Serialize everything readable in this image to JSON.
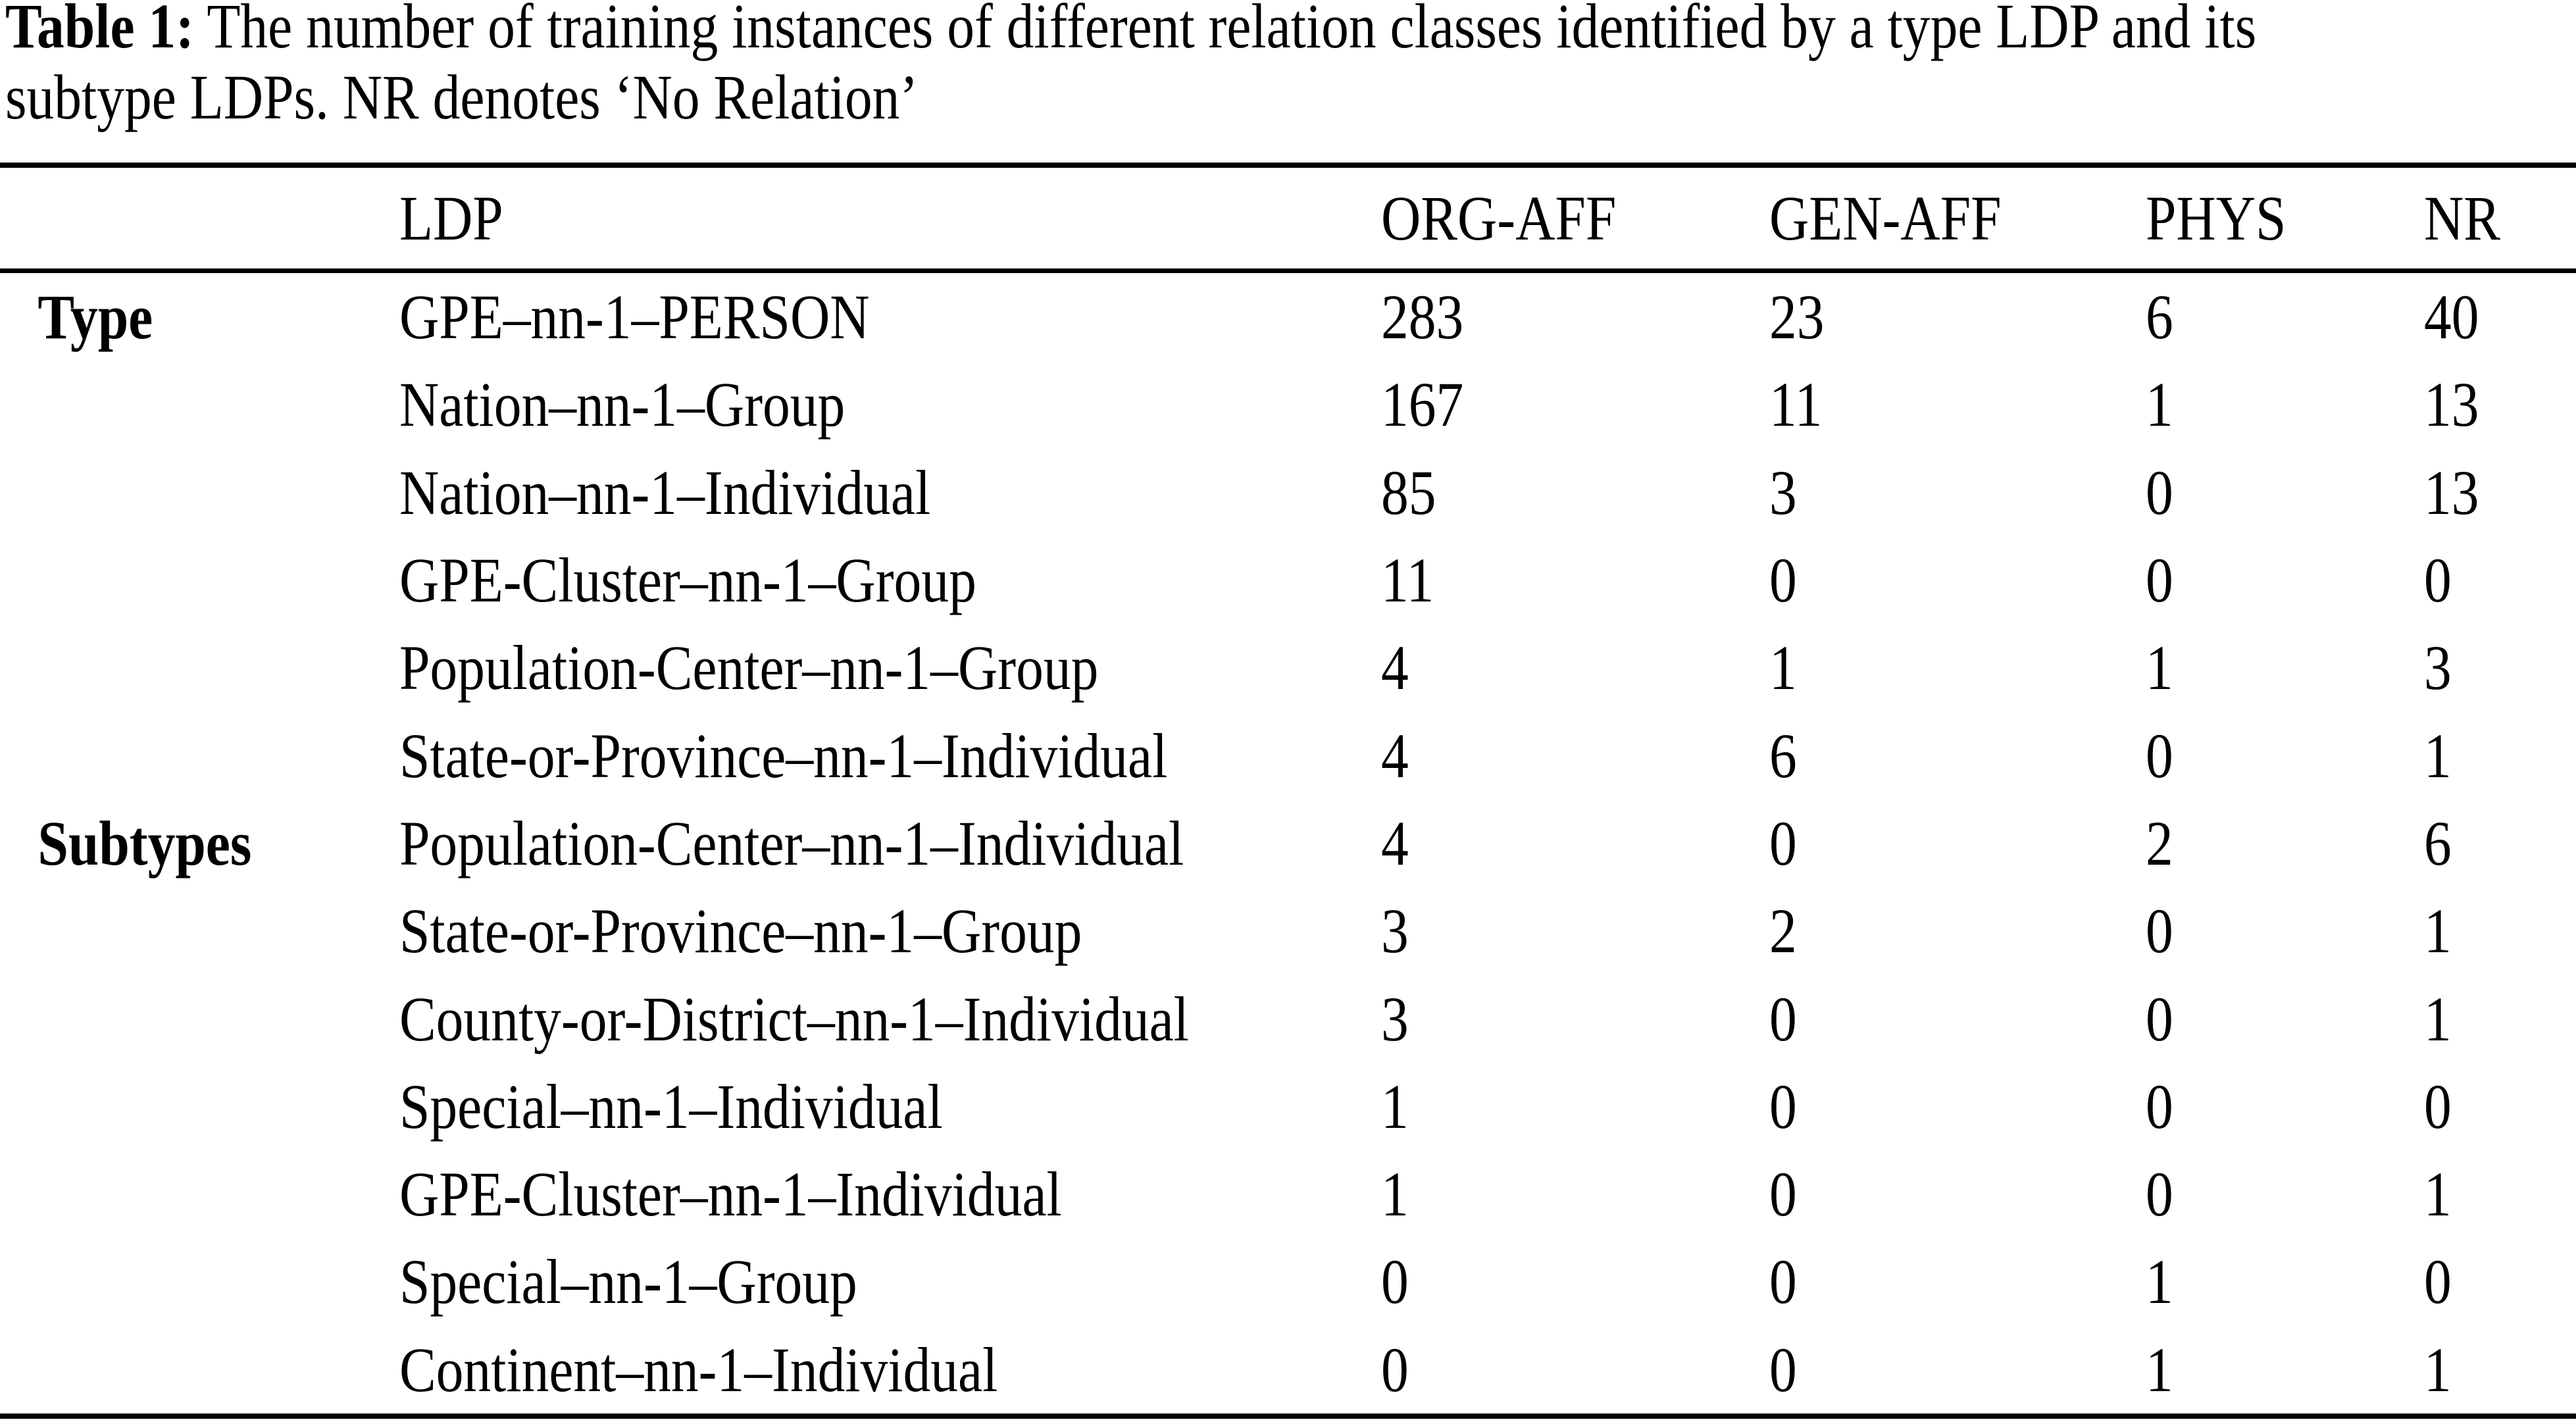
{
  "caption": {
    "label_bold": "Table 1:",
    "line1_rest": "  The number of training instances of different relation classes identified by a type LDP and its",
    "line2": "subtype LDPs. NR denotes ‘No Relation’"
  },
  "table": {
    "headers": [
      "LDP",
      "ORG-AFF",
      "GEN-AFF",
      "PHYS",
      "NR"
    ],
    "rows": [
      {
        "group": "Type",
        "ldp": "GPE–nn-1–PERSON",
        "org_aff": "283",
        "gen_aff": "23",
        "phys": "6",
        "nr": "40"
      },
      {
        "group": "",
        "ldp": "Nation–nn-1–Group",
        "org_aff": "167",
        "gen_aff": "11",
        "phys": "1",
        "nr": "13"
      },
      {
        "group": "",
        "ldp": "Nation–nn-1–Individual",
        "org_aff": "85",
        "gen_aff": "3",
        "phys": "0",
        "nr": "13"
      },
      {
        "group": "",
        "ldp": "GPE-Cluster–nn-1–Group",
        "org_aff": "11",
        "gen_aff": "0",
        "phys": "0",
        "nr": "0"
      },
      {
        "group": "",
        "ldp": "Population-Center–nn-1–Group",
        "org_aff": "4",
        "gen_aff": "1",
        "phys": "1",
        "nr": "3"
      },
      {
        "group": "",
        "ldp": "State-or-Province–nn-1–Individual",
        "org_aff": "4",
        "gen_aff": "6",
        "phys": "0",
        "nr": "1"
      },
      {
        "group": "Subtypes",
        "ldp": "Population-Center–nn-1–Individual",
        "org_aff": "4",
        "gen_aff": "0",
        "phys": "2",
        "nr": "6"
      },
      {
        "group": "",
        "ldp": "State-or-Province–nn-1–Group",
        "org_aff": "3",
        "gen_aff": "2",
        "phys": "0",
        "nr": "1"
      },
      {
        "group": "",
        "ldp": "County-or-District–nn-1–Individual",
        "org_aff": "3",
        "gen_aff": "0",
        "phys": "0",
        "nr": "1"
      },
      {
        "group": "",
        "ldp": "Special–nn-1–Individual",
        "org_aff": "1",
        "gen_aff": "0",
        "phys": "0",
        "nr": "0"
      },
      {
        "group": "",
        "ldp": "GPE-Cluster–nn-1–Individual",
        "org_aff": "1",
        "gen_aff": "0",
        "phys": "0",
        "nr": "1"
      },
      {
        "group": "",
        "ldp": "Special–nn-1–Group",
        "org_aff": "0",
        "gen_aff": "0",
        "phys": "1",
        "nr": "0"
      },
      {
        "group": "",
        "ldp": "Continent–nn-1–Individual",
        "org_aff": "0",
        "gen_aff": "0",
        "phys": "1",
        "nr": "1"
      }
    ]
  },
  "colors": {
    "text": "#000000",
    "background": "#ffffff",
    "rule": "#000000"
  }
}
